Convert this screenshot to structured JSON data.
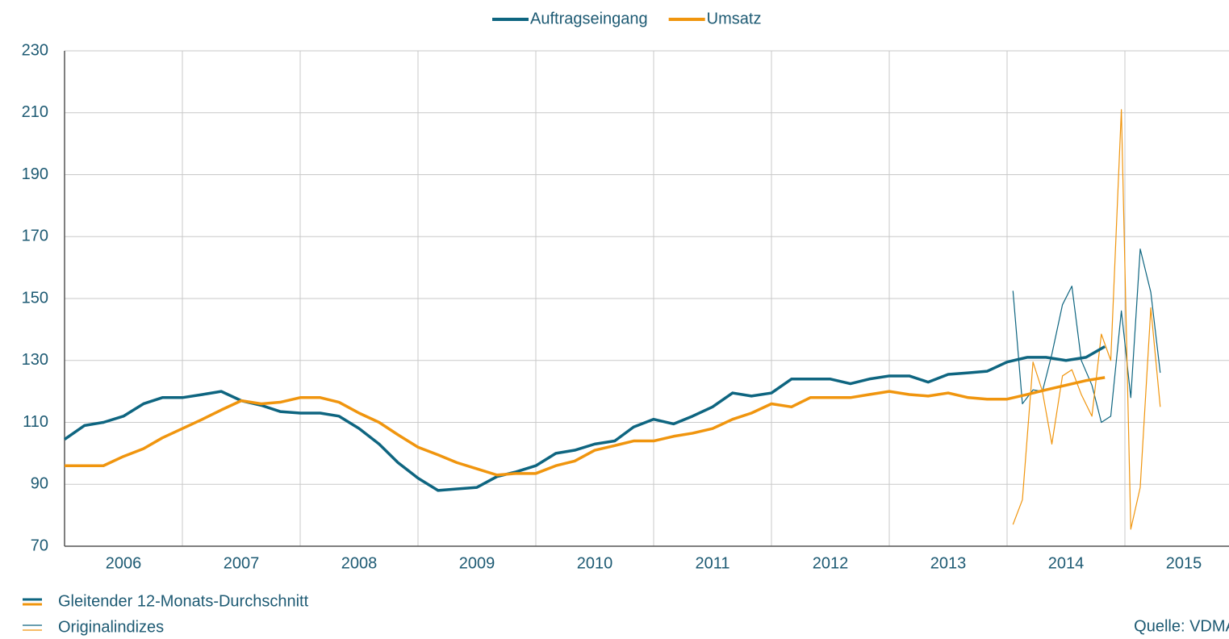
{
  "chart_data": {
    "type": "line",
    "x": [
      2006.0,
      2006.17,
      2006.33,
      2006.5,
      2006.67,
      2006.83,
      2007.0,
      2007.17,
      2007.33,
      2007.5,
      2007.67,
      2007.83,
      2008.0,
      2008.17,
      2008.33,
      2008.5,
      2008.67,
      2008.83,
      2009.0,
      2009.17,
      2009.33,
      2009.5,
      2009.67,
      2009.83,
      2010.0,
      2010.17,
      2010.33,
      2010.5,
      2010.67,
      2010.83,
      2011.0,
      2011.17,
      2011.33,
      2011.5,
      2011.67,
      2011.83,
      2012.0,
      2012.17,
      2012.33,
      2012.5,
      2012.67,
      2012.83,
      2013.0,
      2013.17,
      2013.33,
      2013.5,
      2013.67,
      2013.83,
      2014.0,
      2014.17,
      2014.33,
      2014.5,
      2014.67,
      2014.83
    ],
    "series": [
      {
        "name": "Auftragseingang",
        "color": "#0e6580",
        "width": 3.5,
        "values": [
          104.5,
          109,
          110,
          112,
          116,
          118,
          118,
          119,
          120,
          117,
          115.5,
          113.5,
          113,
          113,
          112,
          108,
          103,
          97,
          92,
          88,
          88.5,
          89,
          92.5,
          94,
          96,
          100,
          101,
          103,
          104,
          108.5,
          111,
          109.5,
          112,
          115,
          119.5,
          118.5,
          119.5,
          124,
          124,
          124,
          122.5,
          124,
          125,
          125,
          123,
          125.5,
          126,
          126.5,
          129.5,
          131,
          131,
          130,
          131,
          134.5
        ]
      },
      {
        "name": "Umsatz",
        "color": "#f0950e",
        "width": 3.5,
        "values": [
          96,
          96,
          96,
          99,
          101.5,
          105,
          108,
          111,
          114,
          117,
          116,
          116.5,
          118,
          118,
          116.5,
          113,
          110,
          106,
          102,
          99.5,
          97,
          95,
          93,
          93.5,
          93.5,
          96,
          97.5,
          101,
          102.5,
          104,
          104,
          105.5,
          106.5,
          108,
          111,
          113,
          116,
          115,
          118,
          118,
          118,
          119,
          120,
          119,
          118.5,
          119.5,
          118,
          117.5,
          117.5,
          119,
          120.5,
          122,
          123.5,
          124.5
        ]
      },
      {
        "color": "#0e6580",
        "width": 1.2,
        "x": [
          2014.05,
          2014.13,
          2014.22,
          2014.3,
          2014.38,
          2014.47,
          2014.55,
          2014.63,
          2014.72,
          2014.8,
          2014.88,
          2014.97,
          2015.05,
          2015.13,
          2015.22,
          2015.3
        ],
        "values": [
          152.5,
          116,
          120.5,
          120,
          132,
          148,
          154,
          130,
          122,
          110,
          112,
          146,
          118,
          166,
          152,
          126
        ]
      },
      {
        "color": "#f0950e",
        "width": 1.2,
        "x": [
          2014.05,
          2014.13,
          2014.22,
          2014.3,
          2014.38,
          2014.47,
          2014.55,
          2014.63,
          2014.72,
          2014.8,
          2014.88,
          2014.97,
          2015.05,
          2015.13,
          2015.22,
          2015.3
        ],
        "values": [
          77,
          85,
          129.5,
          120,
          103,
          125,
          127,
          119,
          112,
          138.5,
          130,
          211,
          75.5,
          89,
          147,
          115
        ]
      }
    ],
    "xlim": [
      2006,
      2015.9
    ],
    "xticks": [
      2006,
      2007,
      2008,
      2009,
      2010,
      2011,
      2012,
      2013,
      2014,
      2015
    ],
    "ylim": [
      70,
      230
    ],
    "yticks": [
      70,
      90,
      110,
      130,
      150,
      170,
      190,
      210,
      230
    ],
    "grid": true,
    "legend": "top",
    "style_legend": [
      {
        "label": "Gleitender 12-Monats-Durchschnitt",
        "width": 3.5
      },
      {
        "label": "Originalindizes",
        "width": 1.2
      }
    ],
    "source": "Quelle: VDMA"
  }
}
